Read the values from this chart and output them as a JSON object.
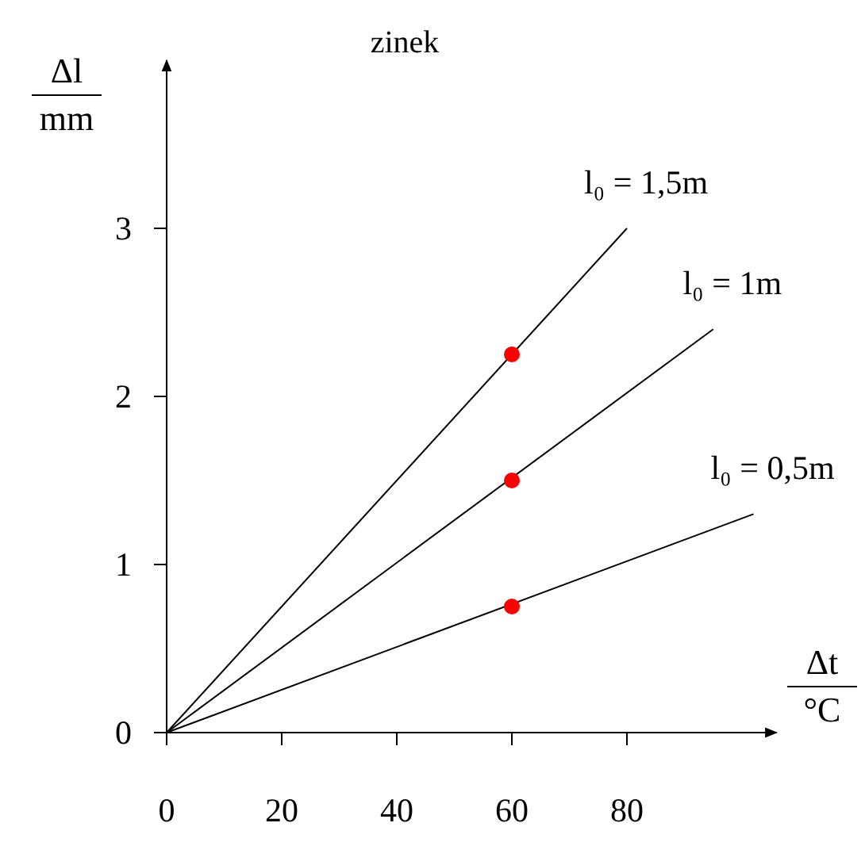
{
  "chart_data": {
    "type": "line",
    "title": "zinek",
    "xlabel": "Δt\n°C",
    "ylabel": "Δl\nmm",
    "xlim": [
      0,
      106
    ],
    "ylim": [
      0,
      4
    ],
    "xticks": [
      0,
      20,
      40,
      60,
      80
    ],
    "yticks": [
      0,
      1,
      2,
      3
    ],
    "grid": false,
    "marker": "none",
    "line_style": "solid",
    "series": [
      {
        "name": "l₀ = 1,5m",
        "color": "#000000",
        "x": [
          0,
          80
        ],
        "values": [
          0,
          3
        ]
      },
      {
        "name": "l₀ = 1m",
        "color": "#000000",
        "x": [
          0,
          95
        ],
        "values": [
          0,
          2.4
        ]
      },
      {
        "name": "l₀ = 0,5m",
        "color": "#000000",
        "x": [
          0,
          102
        ],
        "values": [
          0,
          1.3
        ]
      },
      {
        "type": "scatter",
        "color": "#ff0000",
        "marker": "circle",
        "x": [
          60,
          60,
          60
        ],
        "values": [
          2.25,
          1.5,
          0.75
        ]
      }
    ]
  }
}
